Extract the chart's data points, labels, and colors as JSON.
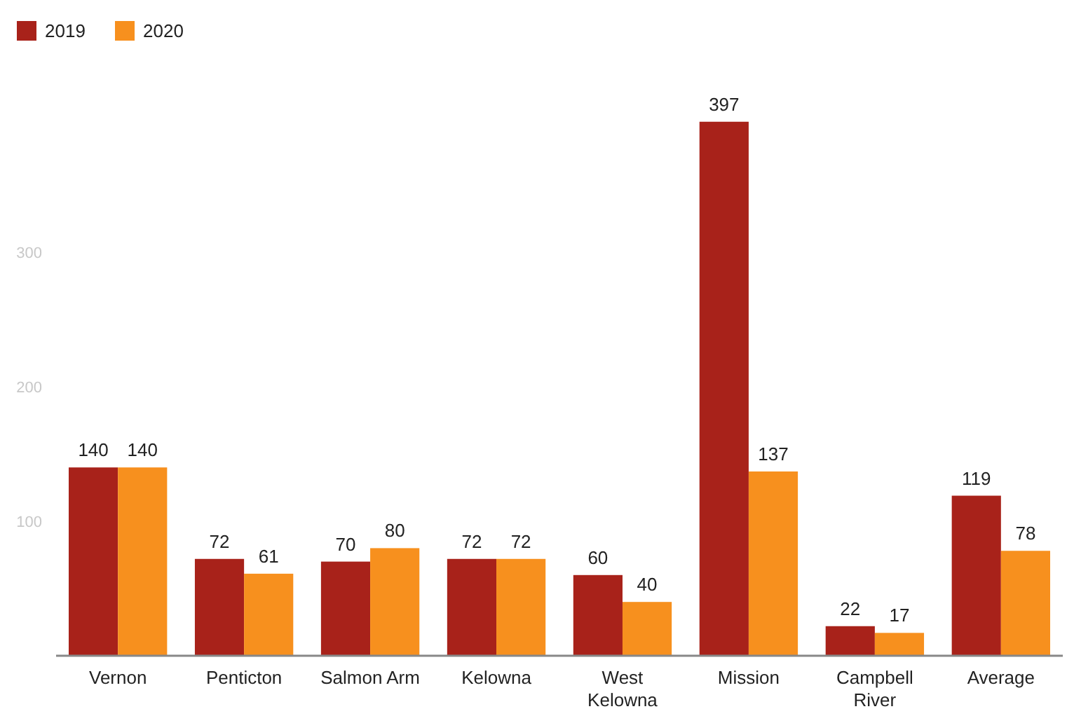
{
  "chart_data": {
    "type": "bar",
    "categories": [
      "Vernon",
      "Penticton",
      "Salmon Arm",
      "Kelowna",
      "West Kelowna",
      "Mission",
      "Campbell River",
      "Average"
    ],
    "series": [
      {
        "name": "2019",
        "color": "#a8221a",
        "values": [
          140,
          72,
          70,
          72,
          60,
          397,
          22,
          119
        ]
      },
      {
        "name": "2020",
        "color": "#f7901e",
        "values": [
          140,
          61,
          80,
          72,
          40,
          137,
          17,
          78
        ]
      }
    ],
    "ylim": [
      0,
      400
    ],
    "yticks": [
      100,
      200,
      300
    ],
    "data_labels": true,
    "legend": "top left",
    "grid": false
  }
}
